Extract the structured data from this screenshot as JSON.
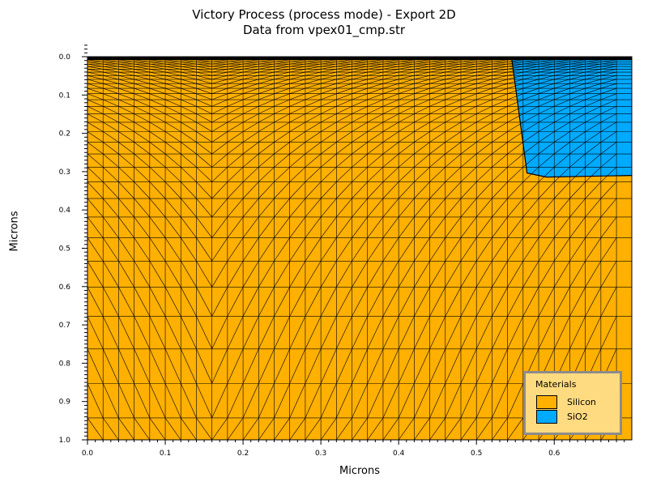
{
  "title": "Victory Process  (process mode) - Export 2D",
  "subtitle": "Data from vpex01_cmp.str",
  "chart_data": {
    "type": "mesh",
    "xlabel": "Microns",
    "ylabel": "Microns",
    "xlim": [
      0.0,
      0.7
    ],
    "ylim": [
      0.0,
      1.0
    ],
    "y_inverted": true,
    "x_ticks": [
      "0.0",
      "0.1",
      "0.2",
      "0.3",
      "0.4",
      "0.5",
      "0.6"
    ],
    "y_ticks": [
      "0.0",
      "0.1",
      "0.2",
      "0.3",
      "0.4",
      "0.5",
      "0.6",
      "0.7",
      "0.8",
      "0.9",
      "1.0"
    ],
    "regions": [
      {
        "material": "Silicon",
        "color": "#ffb000"
      },
      {
        "material": "SiO2",
        "color": "#00aaff",
        "x_range": [
          0.55,
          0.7
        ],
        "y_range": [
          0.0,
          0.31
        ]
      }
    ],
    "mesh_color": "#000000"
  },
  "legend": {
    "title": "Materials",
    "items": [
      {
        "label": "Silicon",
        "color": "#ffb000"
      },
      {
        "label": "SiO2",
        "color": "#00aaff"
      }
    ]
  }
}
